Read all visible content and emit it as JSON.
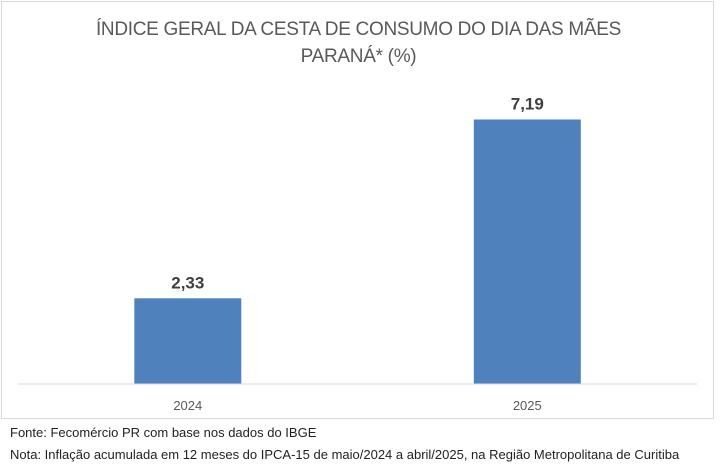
{
  "chart_data": {
    "type": "bar",
    "title_lines": [
      "ÍNDICE GERAL DA CESTA DE CONSUMO DO DIA DAS MÃES",
      "PARANÁ* (%)"
    ],
    "categories": [
      "2024",
      "2025"
    ],
    "values": [
      2.33,
      7.19
    ],
    "value_labels": [
      "2,33",
      "7,19"
    ],
    "ylim": [
      0,
      8.1
    ],
    "grid": false,
    "legend": "none",
    "bar_color": "#4f81bd",
    "axis_color": "#d9d9d9"
  },
  "footer": {
    "source": "Fonte: Fecomércio PR com base nos dados do IBGE",
    "note": "Nota: Inflação acumulada em 12 meses do IPCA-15 de maio/2024 a abril/2025, na Região Metropolitana de Curitiba"
  }
}
